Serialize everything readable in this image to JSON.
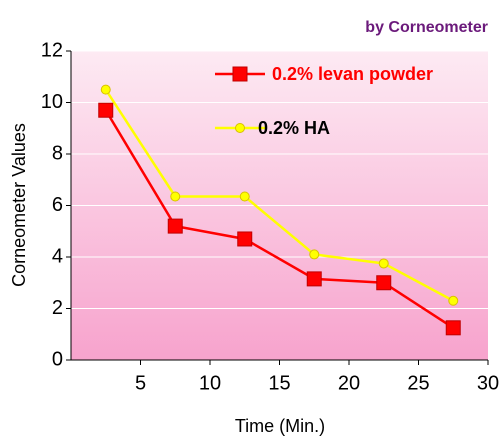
{
  "chart_data": {
    "type": "line",
    "subtitle": "by Corneometer",
    "x_label": "Time (Min.)",
    "y_label": "Corneometer Values",
    "x": [
      2.5,
      7.5,
      12.5,
      17.5,
      22.5,
      27.5
    ],
    "series": [
      {
        "name": "0.2% levan powder",
        "color": "#ff0000",
        "marker": "square",
        "values": [
          9.7,
          5.2,
          4.7,
          3.15,
          3.0,
          1.25
        ]
      },
      {
        "name": "0.2% HA",
        "color": "#ffff00",
        "marker": "circle",
        "values": [
          10.5,
          6.35,
          6.35,
          4.1,
          3.75,
          2.3
        ]
      }
    ],
    "xlim": [
      0,
      30
    ],
    "xticks": [
      5,
      10,
      15,
      20,
      25,
      30
    ],
    "ylim": [
      0,
      12
    ],
    "yticks": [
      0,
      2,
      4,
      6,
      8,
      10,
      12
    ],
    "grid": true
  }
}
